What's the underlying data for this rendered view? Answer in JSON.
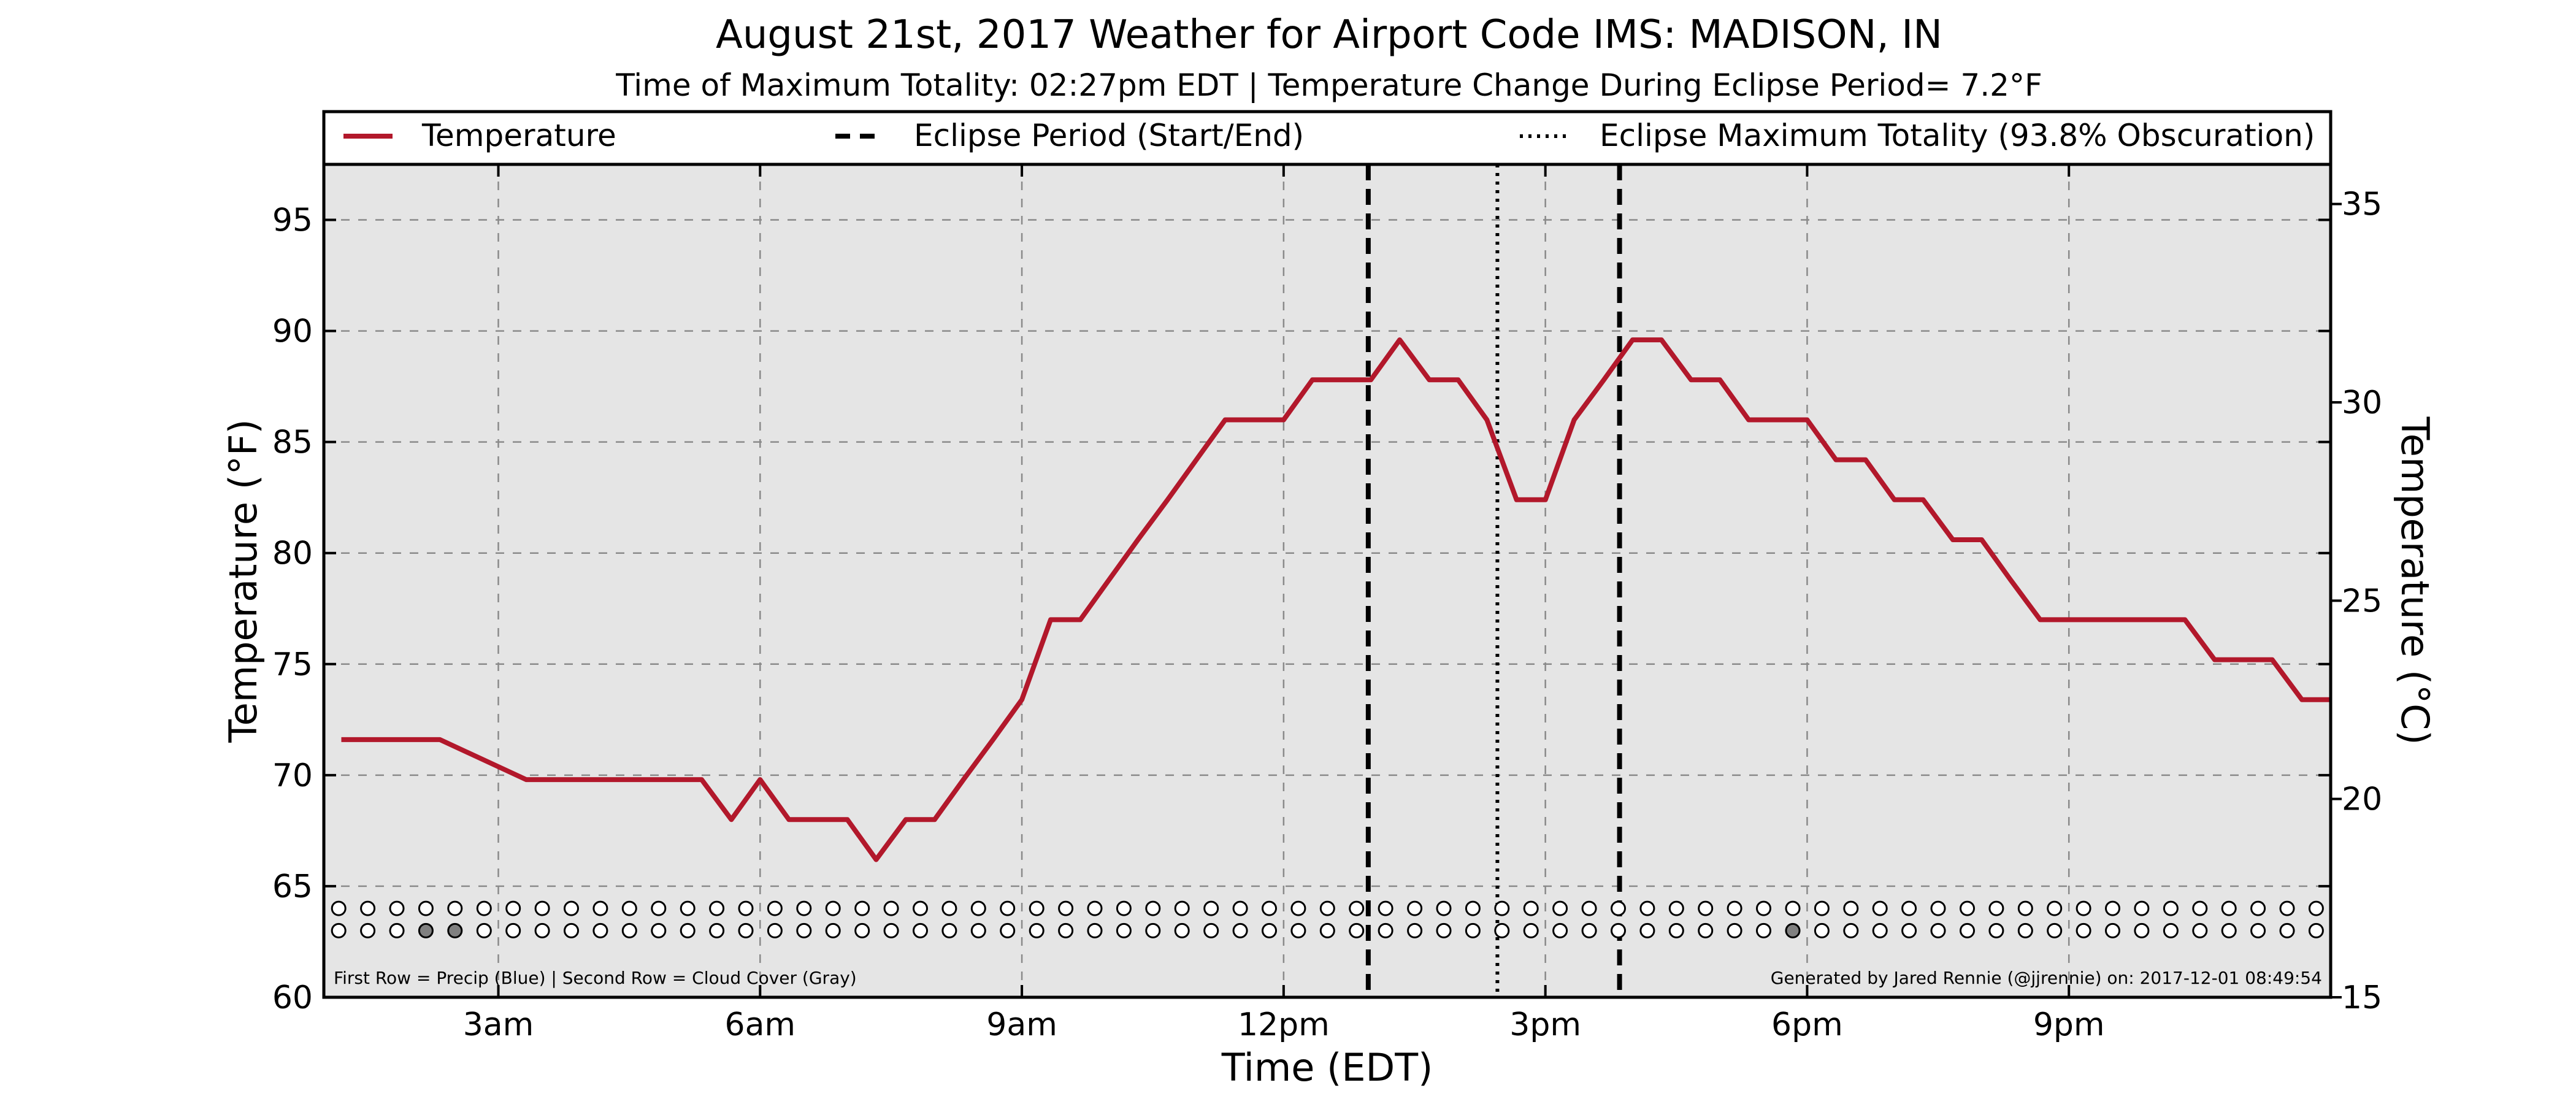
{
  "chart_data": {
    "type": "line",
    "title": "August 21st, 2017 Weather for Airport Code IMS: MADISON, IN",
    "subtitle": "Time of Maximum Totality: 02:27pm EDT | Temperature Change During Eclipse Period= 7.2°F",
    "xlabel": "Time (EDT)",
    "ylabel": "Temperature (°F)",
    "ylabel_right": "Temperature (°C)",
    "xlim": [
      1.0,
      24.0
    ],
    "ylim": [
      60,
      97.5
    ],
    "ylim_right": [
      15.0,
      36.0
    ],
    "x_ticks": [
      {
        "x": 3,
        "label": "3am"
      },
      {
        "x": 6,
        "label": "6am"
      },
      {
        "x": 9,
        "label": "9am"
      },
      {
        "x": 12,
        "label": "12pm"
      },
      {
        "x": 15,
        "label": "3pm"
      },
      {
        "x": 18,
        "label": "6pm"
      },
      {
        "x": 21,
        "label": "9pm"
      }
    ],
    "y_ticks": [
      60,
      65,
      70,
      75,
      80,
      85,
      90,
      95
    ],
    "y_ticks_right": [
      15,
      20,
      25,
      30,
      35
    ],
    "grid": true,
    "legend_position": "top",
    "legend": [
      {
        "label": "Temperature",
        "style": "solid"
      },
      {
        "label": "Eclipse Period (Start/End)",
        "style": "dashed"
      },
      {
        "label": "Eclipse Maximum Totality (93.8% Obscuration)",
        "style": "dotted"
      }
    ],
    "series": [
      {
        "name": "Temperature",
        "color": "#b2182b",
        "x": [
          1.2,
          2.33,
          3.32,
          4.33,
          5.33,
          5.67,
          6.0,
          6.33,
          6.67,
          7.0,
          7.33,
          7.67,
          8.0,
          8.33,
          8.67,
          9.0,
          9.33,
          9.67,
          10.0,
          10.33,
          10.67,
          11.0,
          11.33,
          11.67,
          12.0,
          12.33,
          12.67,
          13.0,
          13.33,
          13.67,
          14.0,
          14.33,
          14.67,
          15.0,
          15.33,
          15.67,
          16.0,
          16.33,
          16.67,
          17.0,
          17.33,
          17.67,
          18.0,
          18.33,
          18.67,
          19.0,
          19.33,
          19.67,
          20.0,
          20.33,
          20.67,
          21.0,
          21.33,
          21.67,
          22.0,
          22.33,
          22.67,
          23.0,
          23.33,
          23.67,
          24.0
        ],
        "values": [
          71.6,
          71.6,
          69.8,
          69.8,
          69.8,
          68.0,
          69.8,
          68.0,
          68.0,
          68.0,
          66.2,
          68.0,
          68.0,
          69.8,
          71.6,
          73.4,
          77.0,
          77.0,
          78.8,
          80.6,
          82.4,
          84.2,
          86.0,
          86.0,
          86.0,
          87.8,
          87.8,
          87.8,
          89.6,
          87.8,
          87.8,
          86.0,
          82.4,
          82.4,
          86.0,
          87.8,
          89.6,
          89.6,
          87.8,
          87.8,
          86.0,
          86.0,
          86.0,
          84.2,
          84.2,
          82.4,
          82.4,
          80.6,
          80.6,
          78.8,
          77.0,
          77.0,
          77.0,
          77.0,
          77.0,
          77.0,
          75.2,
          75.2,
          75.2,
          73.4,
          73.4
        ]
      }
    ],
    "eclipse_start": 12.97,
    "eclipse_end": 15.85,
    "eclipse_max": 14.45,
    "precip_row": {
      "y": 64.0,
      "x_start": 1.17,
      "x_step": 0.3333,
      "count": 69,
      "filled_indices": []
    },
    "cloud_row": {
      "y": 63.0,
      "x_start": 1.17,
      "x_step": 0.3333,
      "count": 69,
      "filled_indices": [
        3,
        4,
        50
      ]
    },
    "footnote_left": "First Row = Precip (Blue) | Second Row = Cloud Cover (Gray)",
    "footnote_right": "Generated by Jared Rennie (@jjrennie) on: 2017-12-01 08:49:54"
  }
}
